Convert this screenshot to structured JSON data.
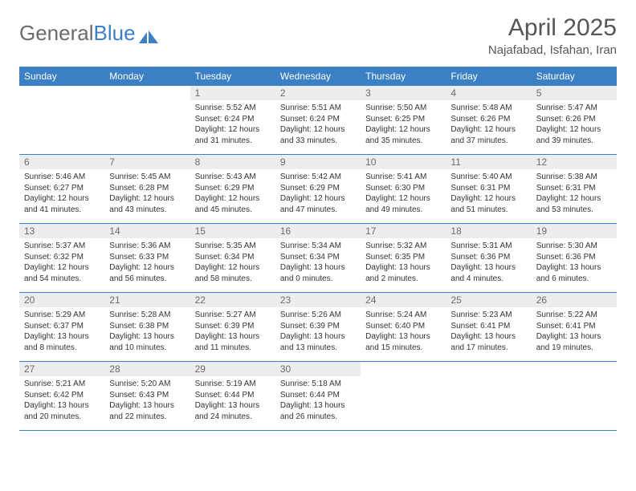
{
  "brand": {
    "part1": "General",
    "part2": "Blue"
  },
  "title": "April 2025",
  "location": "Najafabad, Isfahan, Iran",
  "colors": {
    "header_bg": "#3b7fc4",
    "header_text": "#ffffff",
    "daynum_bg": "#eceded",
    "text": "#333333",
    "title_color": "#565656"
  },
  "weekdays": [
    "Sunday",
    "Monday",
    "Tuesday",
    "Wednesday",
    "Thursday",
    "Friday",
    "Saturday"
  ],
  "weeks": [
    [
      {
        "day": "",
        "sunrise": "",
        "sunset": "",
        "daylight": ""
      },
      {
        "day": "",
        "sunrise": "",
        "sunset": "",
        "daylight": ""
      },
      {
        "day": "1",
        "sunrise": "Sunrise: 5:52 AM",
        "sunset": "Sunset: 6:24 PM",
        "daylight": "Daylight: 12 hours and 31 minutes."
      },
      {
        "day": "2",
        "sunrise": "Sunrise: 5:51 AM",
        "sunset": "Sunset: 6:24 PM",
        "daylight": "Daylight: 12 hours and 33 minutes."
      },
      {
        "day": "3",
        "sunrise": "Sunrise: 5:50 AM",
        "sunset": "Sunset: 6:25 PM",
        "daylight": "Daylight: 12 hours and 35 minutes."
      },
      {
        "day": "4",
        "sunrise": "Sunrise: 5:48 AM",
        "sunset": "Sunset: 6:26 PM",
        "daylight": "Daylight: 12 hours and 37 minutes."
      },
      {
        "day": "5",
        "sunrise": "Sunrise: 5:47 AM",
        "sunset": "Sunset: 6:26 PM",
        "daylight": "Daylight: 12 hours and 39 minutes."
      }
    ],
    [
      {
        "day": "6",
        "sunrise": "Sunrise: 5:46 AM",
        "sunset": "Sunset: 6:27 PM",
        "daylight": "Daylight: 12 hours and 41 minutes."
      },
      {
        "day": "7",
        "sunrise": "Sunrise: 5:45 AM",
        "sunset": "Sunset: 6:28 PM",
        "daylight": "Daylight: 12 hours and 43 minutes."
      },
      {
        "day": "8",
        "sunrise": "Sunrise: 5:43 AM",
        "sunset": "Sunset: 6:29 PM",
        "daylight": "Daylight: 12 hours and 45 minutes."
      },
      {
        "day": "9",
        "sunrise": "Sunrise: 5:42 AM",
        "sunset": "Sunset: 6:29 PM",
        "daylight": "Daylight: 12 hours and 47 minutes."
      },
      {
        "day": "10",
        "sunrise": "Sunrise: 5:41 AM",
        "sunset": "Sunset: 6:30 PM",
        "daylight": "Daylight: 12 hours and 49 minutes."
      },
      {
        "day": "11",
        "sunrise": "Sunrise: 5:40 AM",
        "sunset": "Sunset: 6:31 PM",
        "daylight": "Daylight: 12 hours and 51 minutes."
      },
      {
        "day": "12",
        "sunrise": "Sunrise: 5:38 AM",
        "sunset": "Sunset: 6:31 PM",
        "daylight": "Daylight: 12 hours and 53 minutes."
      }
    ],
    [
      {
        "day": "13",
        "sunrise": "Sunrise: 5:37 AM",
        "sunset": "Sunset: 6:32 PM",
        "daylight": "Daylight: 12 hours and 54 minutes."
      },
      {
        "day": "14",
        "sunrise": "Sunrise: 5:36 AM",
        "sunset": "Sunset: 6:33 PM",
        "daylight": "Daylight: 12 hours and 56 minutes."
      },
      {
        "day": "15",
        "sunrise": "Sunrise: 5:35 AM",
        "sunset": "Sunset: 6:34 PM",
        "daylight": "Daylight: 12 hours and 58 minutes."
      },
      {
        "day": "16",
        "sunrise": "Sunrise: 5:34 AM",
        "sunset": "Sunset: 6:34 PM",
        "daylight": "Daylight: 13 hours and 0 minutes."
      },
      {
        "day": "17",
        "sunrise": "Sunrise: 5:32 AM",
        "sunset": "Sunset: 6:35 PM",
        "daylight": "Daylight: 13 hours and 2 minutes."
      },
      {
        "day": "18",
        "sunrise": "Sunrise: 5:31 AM",
        "sunset": "Sunset: 6:36 PM",
        "daylight": "Daylight: 13 hours and 4 minutes."
      },
      {
        "day": "19",
        "sunrise": "Sunrise: 5:30 AM",
        "sunset": "Sunset: 6:36 PM",
        "daylight": "Daylight: 13 hours and 6 minutes."
      }
    ],
    [
      {
        "day": "20",
        "sunrise": "Sunrise: 5:29 AM",
        "sunset": "Sunset: 6:37 PM",
        "daylight": "Daylight: 13 hours and 8 minutes."
      },
      {
        "day": "21",
        "sunrise": "Sunrise: 5:28 AM",
        "sunset": "Sunset: 6:38 PM",
        "daylight": "Daylight: 13 hours and 10 minutes."
      },
      {
        "day": "22",
        "sunrise": "Sunrise: 5:27 AM",
        "sunset": "Sunset: 6:39 PM",
        "daylight": "Daylight: 13 hours and 11 minutes."
      },
      {
        "day": "23",
        "sunrise": "Sunrise: 5:26 AM",
        "sunset": "Sunset: 6:39 PM",
        "daylight": "Daylight: 13 hours and 13 minutes."
      },
      {
        "day": "24",
        "sunrise": "Sunrise: 5:24 AM",
        "sunset": "Sunset: 6:40 PM",
        "daylight": "Daylight: 13 hours and 15 minutes."
      },
      {
        "day": "25",
        "sunrise": "Sunrise: 5:23 AM",
        "sunset": "Sunset: 6:41 PM",
        "daylight": "Daylight: 13 hours and 17 minutes."
      },
      {
        "day": "26",
        "sunrise": "Sunrise: 5:22 AM",
        "sunset": "Sunset: 6:41 PM",
        "daylight": "Daylight: 13 hours and 19 minutes."
      }
    ],
    [
      {
        "day": "27",
        "sunrise": "Sunrise: 5:21 AM",
        "sunset": "Sunset: 6:42 PM",
        "daylight": "Daylight: 13 hours and 20 minutes."
      },
      {
        "day": "28",
        "sunrise": "Sunrise: 5:20 AM",
        "sunset": "Sunset: 6:43 PM",
        "daylight": "Daylight: 13 hours and 22 minutes."
      },
      {
        "day": "29",
        "sunrise": "Sunrise: 5:19 AM",
        "sunset": "Sunset: 6:44 PM",
        "daylight": "Daylight: 13 hours and 24 minutes."
      },
      {
        "day": "30",
        "sunrise": "Sunrise: 5:18 AM",
        "sunset": "Sunset: 6:44 PM",
        "daylight": "Daylight: 13 hours and 26 minutes."
      },
      {
        "day": "",
        "sunrise": "",
        "sunset": "",
        "daylight": ""
      },
      {
        "day": "",
        "sunrise": "",
        "sunset": "",
        "daylight": ""
      },
      {
        "day": "",
        "sunrise": "",
        "sunset": "",
        "daylight": ""
      }
    ]
  ]
}
